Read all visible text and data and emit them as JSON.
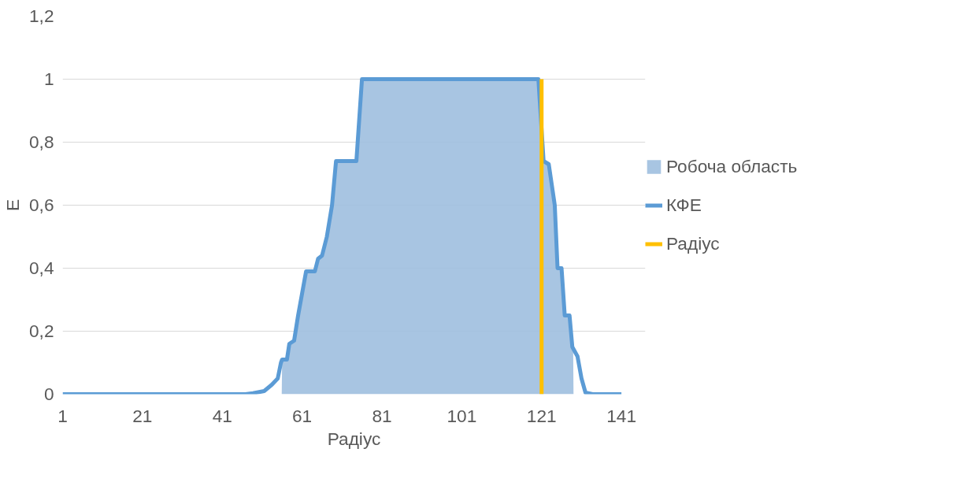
{
  "chart_data": {
    "type": "line",
    "xlabel": "Радіус",
    "ylabel": "E",
    "xlim": [
      1,
      147
    ],
    "xticks": [
      1,
      21,
      41,
      61,
      81,
      101,
      121,
      141
    ],
    "ylim": [
      0,
      1.2
    ],
    "yticks": [
      0,
      {
        "value": 0.2,
        "label": "0,2"
      },
      {
        "value": 0.4,
        "label": "0,4"
      },
      {
        "value": 0.6,
        "label": "0,6"
      },
      {
        "value": 0.8,
        "label": "0,8"
      },
      1,
      {
        "value": 1.2,
        "label": "1,2"
      }
    ],
    "grid": "y",
    "legend": "right",
    "line_style": "solid",
    "marker": "none",
    "series": [
      {
        "name": "Робоча область",
        "type": "area",
        "color": "#9fbfdf",
        "x": [
          1,
          55.9,
          56,
          57.2,
          57.8,
          59,
          60,
          61,
          62,
          64.2,
          65,
          66,
          67.2,
          68.5,
          69.5,
          74.6,
          76,
          120.2,
          121.5,
          122.8,
          124.3,
          125,
          126,
          126.8,
          128,
          128.9,
          129,
          147
        ],
        "values": [
          0,
          0,
          0.11,
          0.11,
          0.16,
          0.17,
          0.25,
          0.32,
          0.39,
          0.39,
          0.43,
          0.44,
          0.5,
          0.6,
          0.74,
          0.74,
          1,
          1,
          0.74,
          0.73,
          0.6,
          0.4,
          0.4,
          0.25,
          0.25,
          0.16,
          0,
          0
        ]
      },
      {
        "name": "КФЕ",
        "color": "#5b9bd5",
        "x": [
          1,
          46.8,
          48.7,
          51.5,
          53.4,
          54.9,
          55.7,
          56,
          57.2,
          57.8,
          59,
          60,
          61,
          62,
          64.2,
          65,
          66,
          67.2,
          68.5,
          69.5,
          74.6,
          76,
          120.2,
          121.5,
          122.8,
          124.3,
          125,
          126,
          126.8,
          128,
          128.7,
          130,
          131,
          132,
          133.8,
          141
        ],
        "values": [
          0,
          0,
          0.003,
          0.01,
          0.03,
          0.05,
          0.1,
          0.11,
          0.11,
          0.16,
          0.17,
          0.25,
          0.32,
          0.39,
          0.39,
          0.43,
          0.44,
          0.5,
          0.6,
          0.74,
          0.74,
          1,
          1,
          0.74,
          0.73,
          0.6,
          0.4,
          0.4,
          0.25,
          0.25,
          0.15,
          0.12,
          0.05,
          0.005,
          0,
          0
        ]
      },
      {
        "name": "Радіус",
        "color": "#ffc000",
        "x": [
          121,
          121
        ],
        "values": [
          0,
          1
        ]
      }
    ]
  }
}
